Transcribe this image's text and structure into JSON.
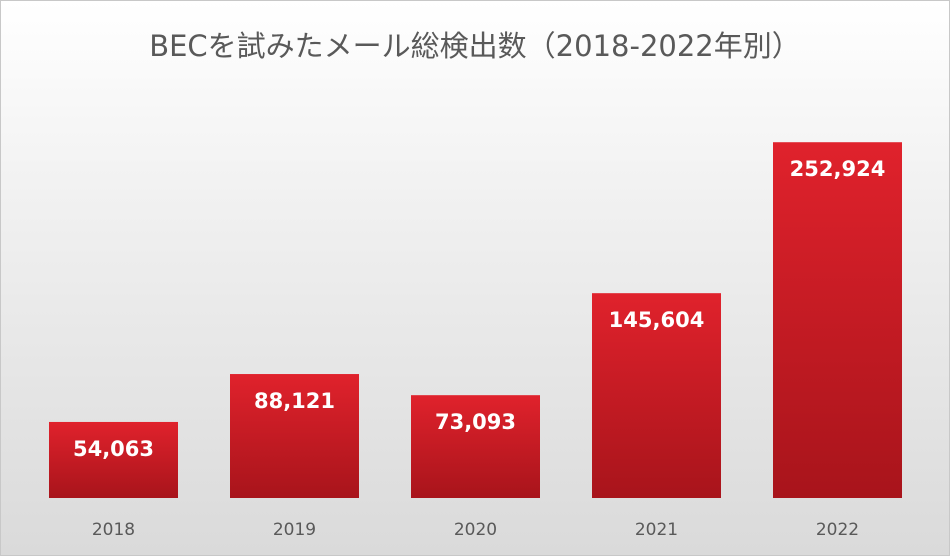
{
  "chart_data": {
    "type": "bar",
    "title": "BECを試みたメール総検出数（2018-2022年別）",
    "xlabel": "",
    "ylabel": "",
    "categories": [
      "2018",
      "2019",
      "2020",
      "2021",
      "2022"
    ],
    "values": [
      54063,
      88121,
      73093,
      145604,
      252924
    ],
    "value_labels": [
      "54,063",
      "88,121",
      "73,093",
      "145,604",
      "252,924"
    ],
    "ylim": [
      0,
      300000
    ],
    "grid": false,
    "legend": "none",
    "colors": {
      "bar_top": "#e0222c",
      "bar_bottom": "#a8141b"
    }
  }
}
